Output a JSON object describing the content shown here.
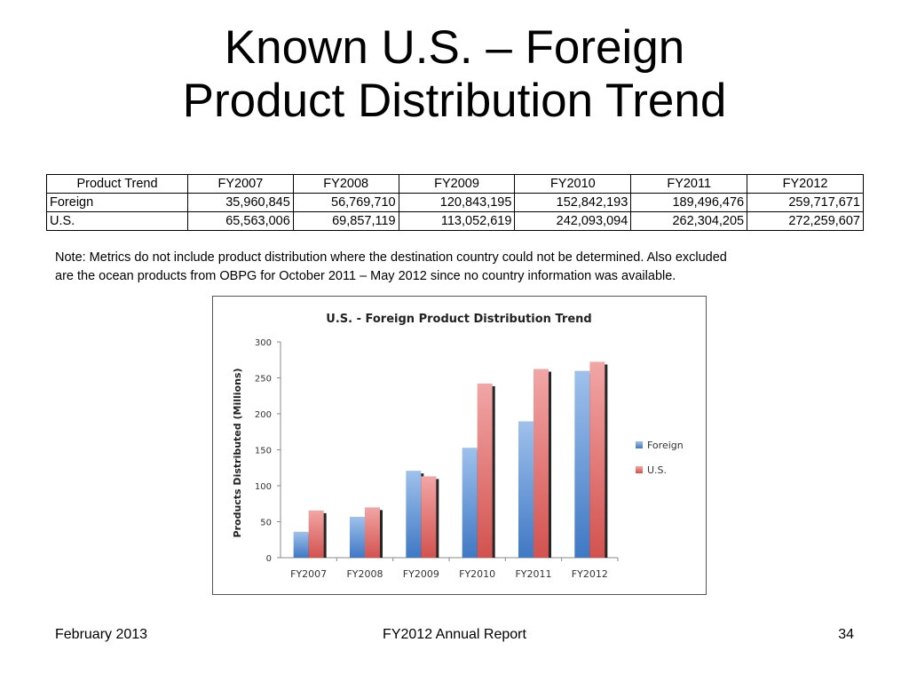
{
  "slide": {
    "title_line1": "Known U.S. – Foreign",
    "title_line2": "Product Distribution Trend",
    "note_line1": "Note: Metrics do not include product  distribution where the destination country could not be determined.  Also excluded",
    "note_line2": "are the ocean products from OBPG for October 2011 – May 2012 since no country information was available.",
    "footer_left": "February 2013",
    "footer_center": "FY2012 Annual Report",
    "footer_right": "34"
  },
  "table": {
    "headers": [
      "Product Trend",
      "FY2007",
      "FY2008",
      "FY2009",
      "FY2010",
      "FY2011",
      "FY2012"
    ],
    "rows": [
      [
        "Foreign",
        "35,960,845",
        "56,769,710",
        "120,843,195",
        "152,842,193",
        "189,496,476",
        "259,717,671"
      ],
      [
        "U.S.",
        "65,563,006",
        "69,857,119",
        "113,052,619",
        "242,093,094",
        "262,304,205",
        "272,259,607"
      ]
    ]
  },
  "chart_data": {
    "type": "bar",
    "title": "U.S. - Foreign Product Distribution Trend",
    "xlabel": "",
    "ylabel": "Products Distributed (Millions)",
    "categories": [
      "FY2007",
      "FY2008",
      "FY2009",
      "FY2010",
      "FY2011",
      "FY2012"
    ],
    "series": [
      {
        "name": "Foreign",
        "values": [
          36.0,
          56.8,
          120.8,
          152.8,
          189.5,
          259.7
        ],
        "color": "#4f81bd"
      },
      {
        "name": "U.S.",
        "values": [
          65.6,
          69.9,
          113.1,
          242.1,
          262.3,
          272.3
        ],
        "color": "#c0504d"
      }
    ],
    "ylim": [
      0,
      300
    ],
    "yticks": [
      "0",
      "50",
      "100",
      "150",
      "200",
      "250",
      "300"
    ],
    "grid": false,
    "legend": "right"
  }
}
